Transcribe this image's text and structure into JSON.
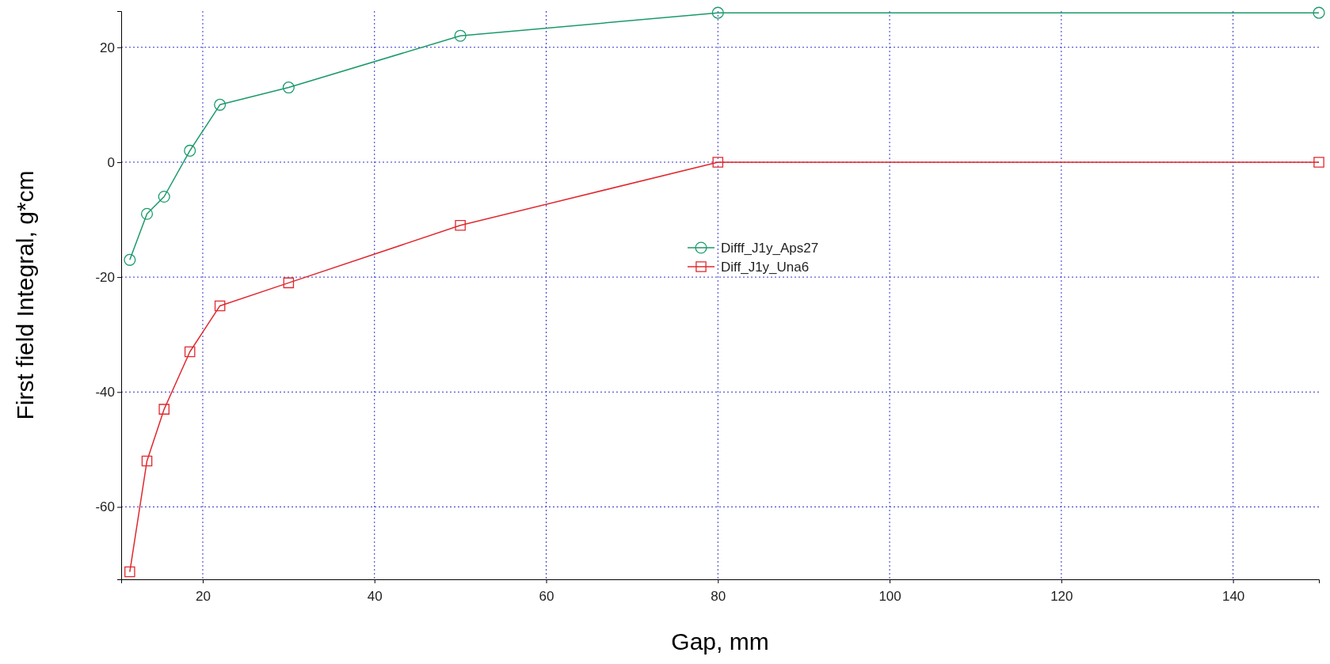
{
  "chart_data": {
    "type": "line",
    "xlabel": "Gap, mm",
    "ylabel": "First field Integral, g*cm",
    "x": [
      11.5,
      13.5,
      15.5,
      18.5,
      22,
      30,
      50,
      80,
      150
    ],
    "series": [
      {
        "name": "Difff_J1y_Aps27",
        "color": "#1a9a6a",
        "marker": "circle",
        "values": [
          -17,
          -9,
          -6,
          2,
          10,
          13,
          22,
          26,
          26
        ]
      },
      {
        "name": "Diff_J1y_Una6",
        "color": "#e0282e",
        "marker": "square",
        "values": [
          -71.3,
          -52,
          -43,
          -33,
          -25,
          -21,
          -11,
          0,
          0
        ]
      }
    ],
    "xlim": [
      10.5,
      150
    ],
    "xticks": [
      20,
      40,
      60,
      80,
      100,
      120,
      140
    ],
    "ylim": [
      -72.6,
      26.3
    ],
    "yticks": [
      -60,
      -40,
      -20,
      0,
      20
    ],
    "grid": true,
    "legend": "center",
    "line_style": "solid"
  }
}
